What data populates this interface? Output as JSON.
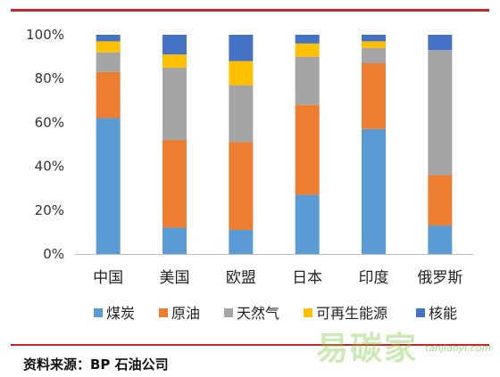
{
  "chart_data": {
    "type": "bar",
    "stacked": true,
    "categories": [
      "中国",
      "美国",
      "欧盟",
      "日本",
      "印度",
      "俄罗斯"
    ],
    "series": [
      {
        "name": "煤炭",
        "color": "#5b9bd5",
        "values": [
          62,
          12,
          11,
          27,
          57,
          13
        ]
      },
      {
        "name": "原油",
        "color": "#ed7d31",
        "values": [
          21,
          40,
          40,
          41,
          30,
          23
        ]
      },
      {
        "name": "天然气",
        "color": "#a5a5a5",
        "values": [
          9,
          33,
          26,
          22,
          7,
          57
        ]
      },
      {
        "name": "可再生能源",
        "color": "#ffc000",
        "values": [
          5,
          6,
          11,
          6,
          3,
          0
        ]
      },
      {
        "name": "核能",
        "color": "#4472c4",
        "values": [
          3,
          9,
          12,
          4,
          3,
          7
        ]
      }
    ],
    "yticks": [
      "0%",
      "20%",
      "40%",
      "60%",
      "80%",
      "100%"
    ],
    "ylim": [
      0,
      100
    ],
    "grid": false,
    "legend": "bottom"
  },
  "source_note": "资料来源：BP 石油公司",
  "watermark": {
    "text": "易碳家",
    "url": "tanjiaoyi.com"
  }
}
